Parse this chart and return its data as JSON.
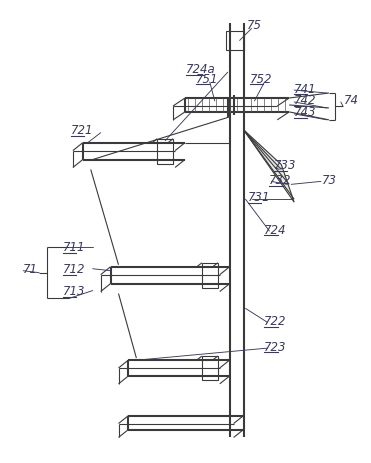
{
  "figsize": [
    3.71,
    4.64
  ],
  "dpi": 100,
  "bg_color": "#ffffff",
  "lc": "#3a3a3a",
  "lc_label": "#3a3a5a",
  "lw_main": 1.5,
  "lw_thin": 0.8,
  "lw_leader": 0.7
}
